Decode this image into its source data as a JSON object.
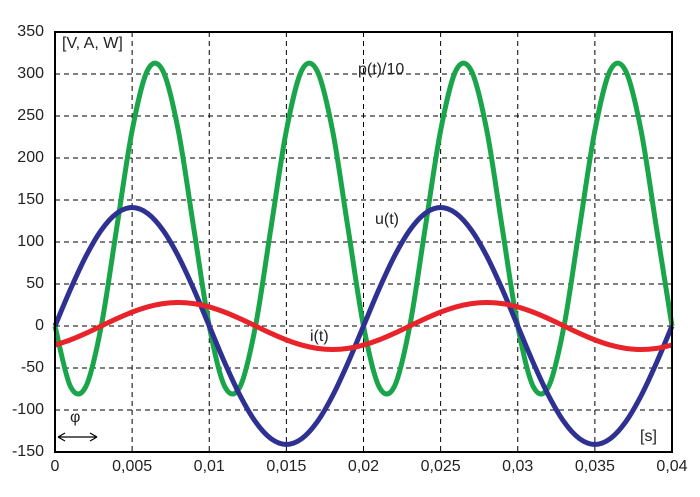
{
  "chart_data": {
    "type": "line",
    "y_label": "[V, A, W]",
    "x_label": "[s]",
    "annotation": "φ",
    "x": [
      0,
      0.001,
      0.002,
      0.003,
      0.004,
      0.005,
      0.006,
      0.007,
      0.008,
      0.009,
      0.01,
      0.011,
      0.012,
      0.013,
      0.014,
      0.015,
      0.016,
      0.017,
      0.018,
      0.019,
      0.02,
      0.021,
      0.022,
      0.023,
      0.024,
      0.025,
      0.026,
      0.027,
      0.028,
      0.029,
      0.03,
      0.031,
      0.032,
      0.033,
      0.034,
      0.035,
      0.036,
      0.037,
      0.038,
      0.039,
      0.04
    ],
    "series": [
      {
        "name": "p(t)/10",
        "color": "#1aa54b",
        "values": [
          0,
          -71.9,
          -72.1,
          0,
          116.7,
          232.7,
          304.4,
          303.5,
          232.1,
          116,
          0,
          -71.9,
          -72.1,
          0,
          116.7,
          232.7,
          304.4,
          303.5,
          232.1,
          116,
          0,
          -71.9,
          -72.1,
          0,
          116.7,
          232.7,
          304.4,
          303.5,
          232.1,
          116,
          0,
          -71.9,
          -72.1,
          0,
          116.7,
          232.7,
          304.4,
          303.5,
          232.1,
          116,
          0
        ]
      },
      {
        "name": "u(t)",
        "color": "#2e3192",
        "values": [
          0,
          43.6,
          82.9,
          114.1,
          134.1,
          141,
          134.1,
          114.1,
          82.9,
          43.6,
          0,
          -43.6,
          -82.9,
          -114.1,
          -134.1,
          -141,
          -134.1,
          -114.1,
          -82.9,
          -43.6,
          0,
          43.6,
          82.9,
          114.1,
          134.1,
          141,
          134.1,
          114.1,
          82.9,
          43.6,
          0,
          -43.6,
          -82.9,
          -114.1,
          -134.1,
          -141,
          -134.1,
          -114.1,
          -82.9,
          -43.6,
          0
        ]
      },
      {
        "name": "i(t)",
        "color": "#e8232a",
        "values": [
          -22.7,
          -16.5,
          -8.7,
          0,
          8.7,
          16.5,
          22.7,
          26.6,
          28,
          26.6,
          22.7,
          16.5,
          8.7,
          0,
          -8.7,
          -16.5,
          -22.7,
          -26.6,
          -28,
          -26.6,
          -22.7,
          -16.5,
          -8.7,
          0,
          8.7,
          16.5,
          22.7,
          26.6,
          28,
          26.6,
          22.7,
          16.5,
          8.7,
          0,
          -8.7,
          -16.5,
          -22.7,
          -26.6,
          -28,
          -26.6,
          -22.7
        ]
      }
    ],
    "xlim": [
      0,
      0.04
    ],
    "ylim": [
      -150,
      350
    ],
    "xticks": [
      0,
      {
        "value": 0.005,
        "label": "0,005"
      },
      {
        "value": 0.01,
        "label": "0,01"
      },
      {
        "value": 0.015,
        "label": "0,015"
      },
      {
        "value": 0.02,
        "label": "0,02"
      },
      {
        "value": 0.025,
        "label": "0,025"
      },
      {
        "value": 0.03,
        "label": "0,03"
      },
      {
        "value": 0.035,
        "label": "0,035"
      },
      {
        "value": 0.04,
        "label": "0,04"
      }
    ],
    "yticks": [
      -150,
      -100,
      -50,
      0,
      50,
      100,
      150,
      200,
      250,
      300,
      350
    ],
    "grid": true
  }
}
